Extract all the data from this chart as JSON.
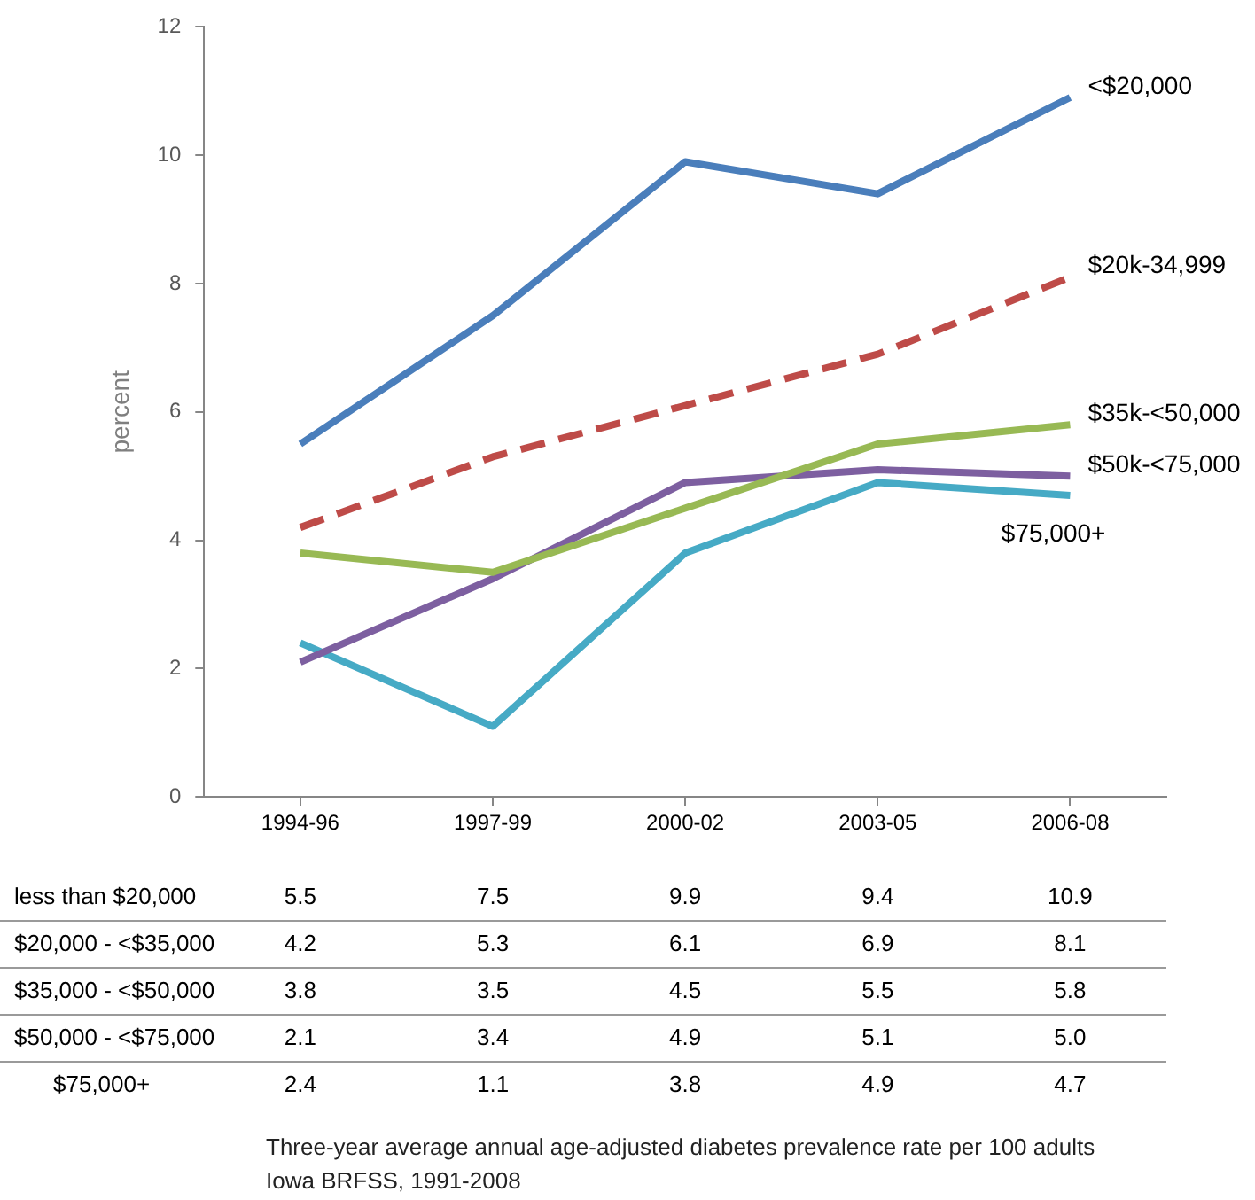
{
  "chart_data": {
    "type": "line",
    "ylabel": "percent",
    "categories": [
      "1994-96",
      "1997-99",
      "2000-02",
      "2003-05",
      "2006-08"
    ],
    "ylim": [
      0,
      12
    ],
    "yticks": [
      0,
      2,
      4,
      6,
      8,
      10,
      12
    ],
    "grid": false,
    "legend": false,
    "marker": "none",
    "series": [
      {
        "name": "<$20,000",
        "color": "#4a7ebb",
        "values": [
          5.5,
          7.5,
          9.9,
          9.4,
          10.9
        ],
        "value_labels": [
          "5.5",
          "7.5",
          "9.9",
          "9.4",
          "10.9"
        ]
      },
      {
        "name": "$20k-34,999",
        "color": "#be4b48",
        "line_style": "dashed",
        "values": [
          4.2,
          5.3,
          6.1,
          6.9,
          8.1
        ],
        "value_labels": [
          "4.2",
          "5.3",
          "6.1",
          "6.9",
          "8.1"
        ]
      },
      {
        "name": "$35k-<50,000",
        "color": "#98b954",
        "values": [
          3.8,
          3.5,
          4.5,
          5.5,
          5.8
        ],
        "value_labels": [
          "3.8",
          "3.5",
          "4.5",
          "5.5",
          "5.8"
        ]
      },
      {
        "name": "$50k-<75,000",
        "color": "#7d5fa0",
        "values": [
          2.1,
          3.4,
          4.9,
          5.1,
          5.0
        ],
        "value_labels": [
          "2.1",
          "3.4",
          "4.9",
          "5.1",
          "5.0"
        ]
      },
      {
        "name": "$75,000+",
        "color": "#46aac5",
        "values": [
          2.4,
          1.1,
          3.8,
          4.9,
          4.7
        ],
        "value_labels": [
          "2.4",
          "1.1",
          "3.8",
          "4.9",
          "4.7"
        ]
      }
    ],
    "annotations": [
      "less than $20,000",
      "$20,000 - <$35,000",
      "$35,000 - <$50,000",
      "$50,000 - <$75,000",
      "$75,000+",
      "Three-year average annual age-adjusted diabetes prevalence rate per 100 adults",
      "Iowa BRFSS, 1991-2008"
    ]
  }
}
